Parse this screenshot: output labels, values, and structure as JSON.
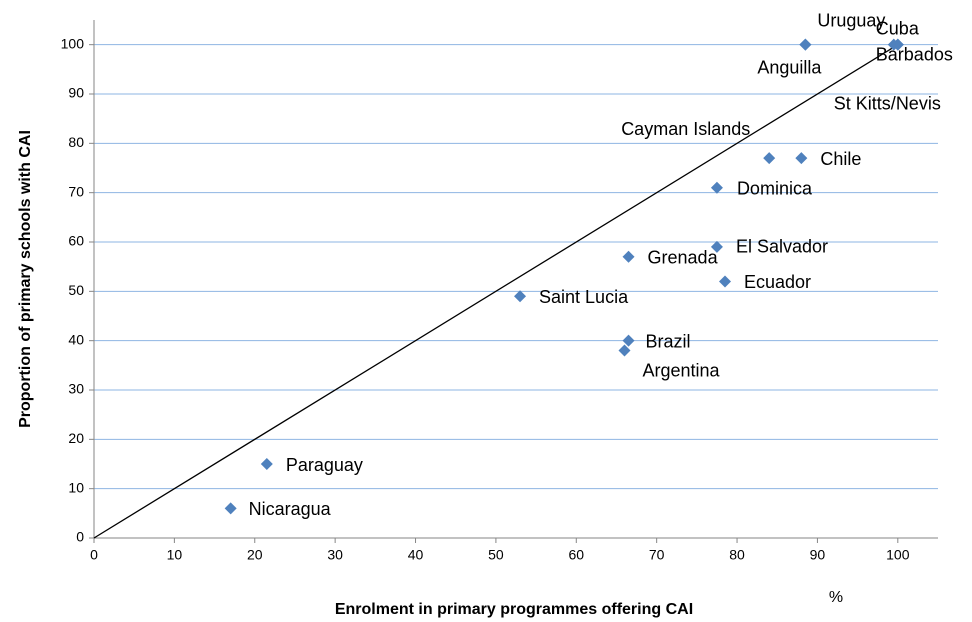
{
  "chart_data": {
    "type": "scatter",
    "x_label": "Enrolment in primary programmes offering CAI",
    "y_label": "Proportion of primary schools with CAI",
    "annotation": "%",
    "color": "#4f81bd",
    "grid": true,
    "xlim": [
      0,
      105
    ],
    "ylim": [
      0,
      105
    ],
    "xticks": [
      0,
      10,
      20,
      30,
      40,
      50,
      60,
      70,
      80,
      90,
      100
    ],
    "yticks": [
      0,
      10,
      20,
      30,
      40,
      50,
      60,
      70,
      80,
      90,
      100
    ],
    "reference_line": {
      "x": [
        0,
        100
      ],
      "y": [
        0,
        100
      ]
    },
    "labels": [
      "Uruguay",
      "Anguilla",
      "Cuba",
      "Barbados",
      "St Kitts/Nevis",
      "Cayman Islands",
      "Chile",
      "Dominica",
      "El Salvador",
      "Grenada",
      "Ecuador",
      "Saint Lucia",
      "Brazil",
      "Argentina",
      "Paraguay",
      "Nicaragua"
    ],
    "x": [
      88.5,
      88.5,
      100,
      99.5,
      100,
      84,
      88,
      77.5,
      77.5,
      66.5,
      78.5,
      53,
      66.5,
      66,
      21.5,
      17
    ],
    "y": [
      100,
      100,
      100,
      100,
      100,
      77,
      77,
      71,
      59,
      57,
      52,
      49,
      40,
      38,
      15,
      6
    ]
  }
}
